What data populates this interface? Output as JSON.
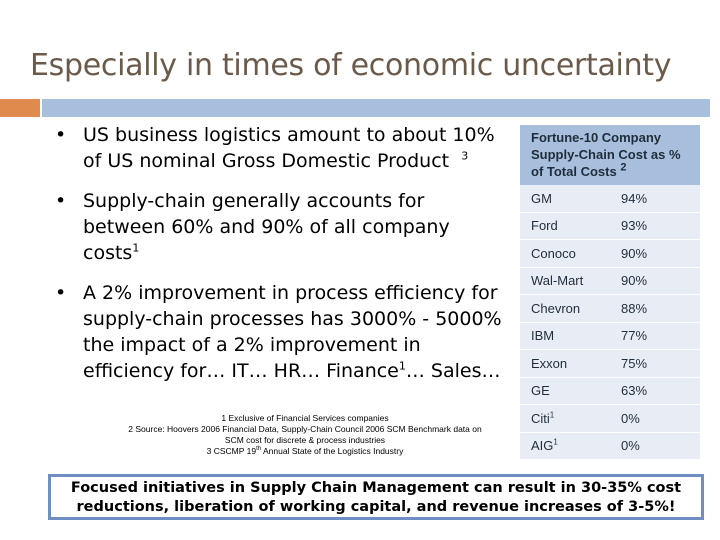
{
  "title": "Especially in times of economic uncertainty",
  "bullets": [
    {
      "text": "US business logistics amount to about 10% of US nominal Gross Domestic Product",
      "sup": "3"
    },
    {
      "text": "Supply-chain generally accounts for between 60% and 90% of all company costs",
      "sup": "1"
    },
    {
      "text_a": "A 2% improvement in process efficiency for supply-chain processes has 3000% - 5000% the impact of a 2% improvement in efficiency for… IT… HR… Finance",
      "sup": "1",
      "text_b": "… Sales…"
    }
  ],
  "footnotes": {
    "f1": "1 Exclusive of Financial Services companies",
    "f2": "2 Source: Hoovers 2006 Financial Data, Supply-Chain Council 2006 SCM Benchmark data on SCM cost for discrete & process industries",
    "f3a": "3 CSCMP 19",
    "f3sup": "th",
    "f3b": " Annual State of the Logistics Industry"
  },
  "table": {
    "header": "Fortune-10 Company Supply-Chain Cost as % of Total Costs",
    "header_sup": "2",
    "rows": [
      {
        "company": "GM",
        "sup": "",
        "pct": "94%"
      },
      {
        "company": "Ford",
        "sup": "",
        "pct": "93%"
      },
      {
        "company": "Conoco",
        "sup": "",
        "pct": "90%"
      },
      {
        "company": "Wal-Mart",
        "sup": "",
        "pct": "90%"
      },
      {
        "company": "Chevron",
        "sup": "",
        "pct": "88%"
      },
      {
        "company": "IBM",
        "sup": "",
        "pct": "77%"
      },
      {
        "company": "Exxon",
        "sup": "",
        "pct": "75%"
      },
      {
        "company": "GE",
        "sup": "",
        "pct": "63%"
      },
      {
        "company": "Citi",
        "sup": "1",
        "pct": "0%"
      },
      {
        "company": "AIG",
        "sup": "1",
        "pct": "0%"
      }
    ]
  },
  "callout": "Focused initiatives in Supply Chain Management can result in 30-35% cost reductions, liberation of working capital, and revenue increases of 3-5%!",
  "colors": {
    "title": "#6b5a4a",
    "accent": "#e08a4e",
    "header": "#a7bfdc",
    "row": "#e8edf5",
    "callout_border": "#6f8fc4"
  }
}
